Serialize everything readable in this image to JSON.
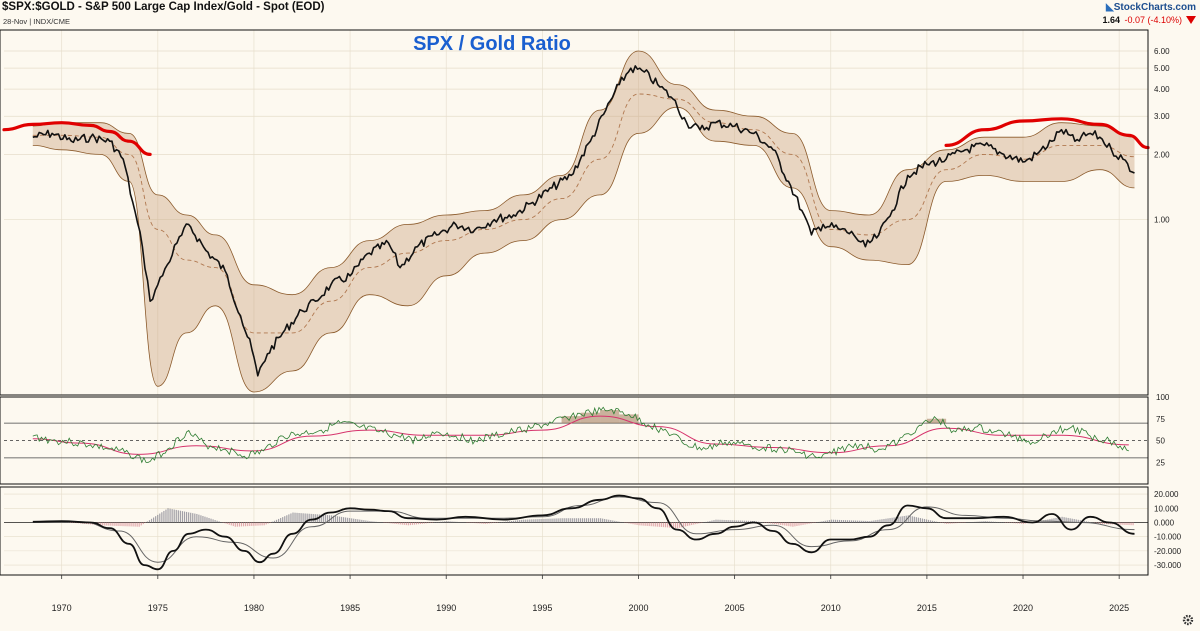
{
  "header": {
    "title": "$SPX:$GOLD - S&P 500 Large Cap Index/Gold - Spot (EOD)",
    "subtitle": "28-Nov | INDX/CME",
    "logo": "StockCharts.com",
    "last": "1.64",
    "change": "-0.07 (-4.10%)"
  },
  "chart_data": [
    {
      "type": "line",
      "panel": "price",
      "title": "SPX / Gold Ratio",
      "title_color": "#1a5fd0",
      "scale": "log",
      "xlim": [
        1967,
        2026.5
      ],
      "ylim": [
        0.155,
        7.5
      ],
      "ytick_values": [
        6,
        5,
        4,
        3,
        2,
        1
      ],
      "ytick_labels": [
        "6.00",
        "5.00",
        "4.00",
        "3.00",
        "2.00",
        "1.00"
      ],
      "xtick_labels": [
        "1970",
        "1975",
        "1980",
        "1985",
        "1990",
        "1995",
        "2000",
        "2005",
        "2010",
        "2015",
        "2020",
        "2025"
      ],
      "grid": true,
      "colors": {
        "price": "#111111",
        "band": "#8b5a2b",
        "band_fill": "#c8a07a",
        "ma": "#b07850",
        "arc": "#e00000"
      },
      "series": [
        {
          "role": "price",
          "x": [
            1968.5,
            1969.5,
            1970.5,
            1971.5,
            1972.5,
            1973.2,
            1973.7,
            1974.2,
            1974.6,
            1975.0,
            1975.5,
            1976.0,
            1976.6,
            1977.5,
            1978.5,
            1979.3,
            1979.9,
            1980.2,
            1980.7,
            1981.5,
            1982.5,
            1983.2,
            1984.0,
            1985.0,
            1986.0,
            1987.0,
            1987.6,
            1988.5,
            1989.5,
            1990.5,
            1991.5,
            1992.5,
            1993.5,
            1994.5,
            1995.5,
            1996.5,
            1997.5,
            1998.3,
            1999.0,
            1999.6,
            2000.3,
            2001.0,
            2001.8,
            2002.5,
            2003.2,
            2004.0,
            2005.0,
            2006.0,
            2007.0,
            2007.8,
            2008.5,
            2009.0,
            2009.6,
            2010.5,
            2011.2,
            2011.8,
            2012.5,
            2013.2,
            2014.0,
            2015.0,
            2016.0,
            2017.0,
            2018.0,
            2019.0,
            2020.1,
            2020.7,
            2021.5,
            2022.0,
            2022.7,
            2023.5,
            2024.0,
            2024.6,
            2025.2,
            2025.8
          ],
          "y": [
            2.4,
            2.5,
            2.3,
            2.4,
            2.3,
            1.9,
            1.2,
            0.75,
            0.42,
            0.5,
            0.62,
            0.78,
            0.95,
            0.72,
            0.58,
            0.36,
            0.25,
            0.19,
            0.24,
            0.3,
            0.38,
            0.42,
            0.5,
            0.55,
            0.7,
            0.78,
            0.6,
            0.75,
            0.85,
            0.95,
            0.9,
            1.0,
            1.05,
            1.2,
            1.4,
            1.6,
            2.3,
            3.2,
            4.2,
            5.0,
            4.8,
            4.2,
            3.6,
            2.8,
            2.6,
            2.8,
            2.7,
            2.5,
            2.1,
            1.5,
            1.1,
            0.85,
            0.95,
            0.9,
            0.85,
            0.75,
            0.85,
            1.1,
            1.6,
            1.8,
            1.9,
            2.1,
            2.2,
            2.0,
            1.85,
            2.0,
            2.3,
            2.6,
            2.3,
            2.5,
            2.4,
            2.1,
            1.9,
            1.64
          ]
        },
        {
          "role": "band_upper",
          "x": [
            1968.5,
            1970,
            1972,
            1973.5,
            1975,
            1976.5,
            1978,
            1980,
            1982,
            1984,
            1986,
            1988,
            1990,
            1992,
            1994,
            1996,
            1998,
            2000,
            2002,
            2004,
            2006,
            2008,
            2010,
            2012,
            2014,
            2016,
            2018,
            2020,
            2022,
            2024,
            2025.8
          ],
          "y": [
            2.7,
            2.8,
            2.8,
            2.5,
            1.3,
            1.05,
            0.85,
            0.5,
            0.45,
            0.6,
            0.8,
            0.95,
            1.05,
            1.1,
            1.3,
            1.6,
            3.2,
            6.0,
            4.2,
            3.2,
            3.0,
            2.5,
            1.1,
            1.05,
            1.7,
            2.1,
            2.4,
            2.4,
            2.8,
            2.7,
            2.4
          ]
        },
        {
          "role": "band_lower",
          "x": [
            1968.5,
            1970,
            1972,
            1973.5,
            1975,
            1976.5,
            1978,
            1980,
            1982,
            1984,
            1986,
            1988,
            1990,
            1992,
            1994,
            1996,
            1998,
            2000,
            2002,
            2004,
            2006,
            2008,
            2010,
            2012,
            2014,
            2016,
            2018,
            2020,
            2022,
            2024,
            2025.8
          ],
          "y": [
            2.2,
            2.1,
            2.0,
            1.5,
            0.17,
            0.3,
            0.4,
            0.16,
            0.2,
            0.3,
            0.45,
            0.4,
            0.55,
            0.7,
            0.8,
            1.0,
            1.3,
            2.5,
            3.3,
            2.3,
            2.2,
            1.4,
            0.75,
            0.65,
            0.62,
            1.5,
            1.6,
            1.5,
            1.5,
            1.7,
            1.4
          ]
        },
        {
          "role": "moving_average",
          "x": [
            1968.5,
            1970,
            1972,
            1973.5,
            1975,
            1976.5,
            1978,
            1980,
            1982,
            1984,
            1986,
            1988,
            1990,
            1992,
            1994,
            1996,
            1998,
            2000,
            2002,
            2004,
            2006,
            2008,
            2010,
            2012,
            2014,
            2016,
            2018,
            2020,
            2022,
            2024,
            2025.8
          ],
          "y": [
            2.45,
            2.45,
            2.4,
            2.0,
            0.9,
            0.65,
            0.6,
            0.3,
            0.3,
            0.42,
            0.6,
            0.7,
            0.8,
            0.9,
            1.0,
            1.25,
            1.9,
            3.8,
            3.6,
            2.8,
            2.6,
            2.0,
            0.9,
            0.85,
            1.0,
            1.7,
            2.0,
            1.9,
            2.2,
            2.2,
            1.95
          ]
        },
        {
          "role": "arc_left",
          "x": [
            1967,
            1968.5,
            1970,
            1971.5,
            1972.5,
            1973.5,
            1974.6
          ],
          "y": [
            2.6,
            2.75,
            2.8,
            2.72,
            2.55,
            2.3,
            2.0
          ]
        },
        {
          "role": "arc_right",
          "x": [
            2016,
            2018,
            2020,
            2022,
            2024,
            2025.5,
            2026.5
          ],
          "y": [
            2.2,
            2.6,
            2.85,
            2.92,
            2.75,
            2.45,
            2.15
          ]
        }
      ]
    },
    {
      "type": "line",
      "panel": "rsi",
      "ylim": [
        0,
        100
      ],
      "ytick_labels": [
        "100",
        "75",
        "50",
        "25"
      ],
      "ytick_values": [
        100,
        75,
        50,
        25
      ],
      "reference_lines": [
        70,
        50,
        30
      ],
      "colors": {
        "rsi": "#2e7d32",
        "signal": "#d6336c",
        "shade": "#a07858"
      },
      "series": [
        {
          "role": "rsi",
          "x": [
            1968.5,
            1969.5,
            1970.5,
            1971.5,
            1972.5,
            1973.5,
            1974.5,
            1975.5,
            1976.5,
            1977.5,
            1978.5,
            1979.5,
            1980.5,
            1981.5,
            1982.5,
            1983.5,
            1984.5,
            1985.5,
            1986.5,
            1987.5,
            1988.5,
            1989.5,
            1990.5,
            1991.5,
            1992.5,
            1993.5,
            1994.5,
            1995.5,
            1996.5,
            1997.5,
            1998.5,
            1999.5,
            2000.5,
            2001.5,
            2002.5,
            2003.5,
            2004.5,
            2005.5,
            2006.5,
            2007.5,
            2008.5,
            2009.5,
            2010.5,
            2011.5,
            2012.5,
            2013.5,
            2014.5,
            2015.5,
            2016.5,
            2017.5,
            2018.5,
            2019.5,
            2020.5,
            2021.5,
            2022.5,
            2023.5,
            2024.5,
            2025.5
          ],
          "y": [
            55,
            50,
            48,
            45,
            40,
            35,
            25,
            40,
            60,
            45,
            40,
            32,
            38,
            55,
            58,
            62,
            70,
            65,
            60,
            55,
            50,
            60,
            55,
            50,
            55,
            60,
            65,
            70,
            78,
            82,
            85,
            80,
            68,
            60,
            45,
            40,
            48,
            45,
            42,
            40,
            35,
            30,
            40,
            45,
            40,
            48,
            65,
            75,
            60,
            65,
            60,
            55,
            48,
            60,
            65,
            55,
            50,
            38
          ]
        },
        {
          "role": "signal",
          "x": [
            1968.5,
            1971,
            1974,
            1977,
            1980,
            1983,
            1986,
            1989,
            1992,
            1995,
            1998,
            2001,
            2004,
            2007,
            2010,
            2013,
            2016,
            2019,
            2022,
            2025.5
          ],
          "y": [
            52,
            47,
            34,
            44,
            38,
            55,
            62,
            56,
            56,
            62,
            78,
            66,
            46,
            42,
            36,
            44,
            64,
            56,
            56,
            45
          ]
        }
      ]
    },
    {
      "type": "line",
      "panel": "macd",
      "ylim": [
        -37,
        25
      ],
      "ytick_values": [
        20,
        10,
        0,
        -10,
        -20,
        -30
      ],
      "ytick_labels": [
        "20.000",
        "10.000",
        "0.000",
        "-10.000",
        "-20.000",
        "-30.000"
      ],
      "colors": {
        "macd": "#111111",
        "signal": "#666666",
        "hist_pos": "#7a7a88",
        "hist_neg": "#d88a92"
      },
      "series": [
        {
          "role": "macd",
          "x": [
            1968.5,
            1970,
            1971.5,
            1972.5,
            1973.5,
            1974.3,
            1975.0,
            1975.8,
            1976.6,
            1977.5,
            1978.5,
            1979.5,
            1980.3,
            1981.0,
            1982.0,
            1983.0,
            1984.0,
            1985.0,
            1986.0,
            1987.0,
            1988.0,
            1989.5,
            1991.0,
            1993.0,
            1995.0,
            1996.5,
            1998.0,
            1999.0,
            2000.0,
            2001.0,
            2002.0,
            2003.0,
            2004.0,
            2005.0,
            2006.0,
            2007.0,
            2008.0,
            2009.0,
            2010.0,
            2011.0,
            2012.0,
            2013.0,
            2014.0,
            2015.0,
            2016.0,
            2017.5,
            2019.0,
            2020.5,
            2021.5,
            2022.5,
            2023.5,
            2024.5,
            2025.8
          ],
          "y": [
            0.5,
            1,
            0,
            -4,
            -15,
            -30,
            -33,
            -20,
            -8,
            -5,
            -10,
            -20,
            -28,
            -22,
            -8,
            2,
            7,
            10,
            9,
            8,
            3,
            2,
            4,
            2,
            5,
            10,
            16,
            19,
            17,
            10,
            -5,
            -12,
            -8,
            -3,
            0,
            -6,
            -15,
            -21,
            -12,
            -12,
            -10,
            -2,
            12,
            10,
            3,
            3,
            4,
            0,
            6,
            -5,
            4,
            0,
            -8
          ]
        },
        {
          "role": "signal",
          "x": [
            1968.5,
            1971,
            1973,
            1975,
            1977,
            1979,
            1981,
            1983,
            1985,
            1987,
            1989,
            1991,
            1993,
            1995,
            1997,
            1999,
            2001,
            2003,
            2005,
            2007,
            2009,
            2011,
            2013,
            2015,
            2017,
            2019,
            2021,
            2023,
            2025.8
          ],
          "y": [
            0,
            0.5,
            -6,
            -28,
            -10,
            -14,
            -25,
            -3,
            8,
            8,
            3,
            3,
            3,
            4,
            12,
            18,
            14,
            -8,
            -5,
            -2,
            -17,
            -13,
            -5,
            11,
            5,
            3,
            1,
            0,
            -5
          ]
        },
        {
          "role": "histogram",
          "x": [
            1968.5,
            1970,
            1972,
            1974,
            1975.5,
            1977,
            1979,
            1980.5,
            1982,
            1984,
            1986,
            1988,
            1990,
            1992,
            1994,
            1996,
            1998,
            2000,
            2002,
            2004,
            2006,
            2008,
            2010,
            2012,
            2014,
            2016,
            2018,
            2020,
            2022,
            2024,
            2025.8
          ],
          "y": [
            0,
            0.5,
            -2,
            -3,
            10,
            6,
            -3,
            -2,
            7,
            5,
            1,
            -2,
            1,
            -1,
            2,
            3,
            3,
            -2,
            -4,
            2,
            1,
            -3,
            2,
            1,
            5,
            -1,
            1,
            -1,
            4,
            -1,
            -2
          ]
        }
      ]
    }
  ]
}
